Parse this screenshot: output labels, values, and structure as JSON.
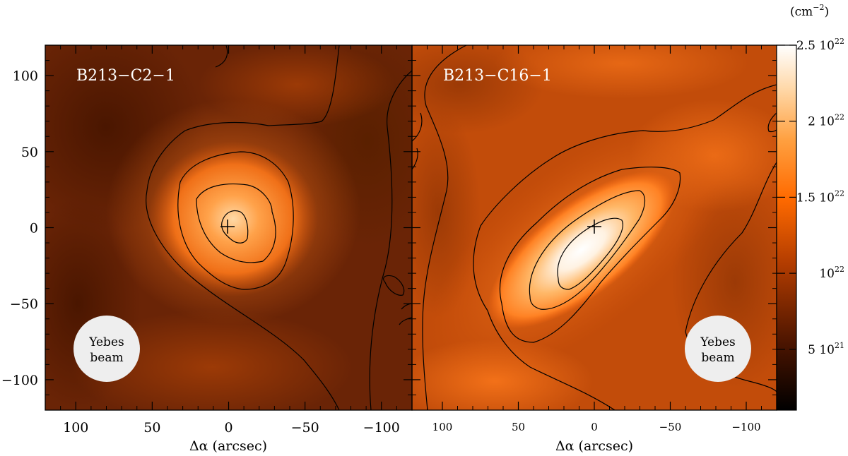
{
  "chart_data": {
    "type": "heatmap",
    "colorbar": {
      "unit": "(cm",
      "unit_exp": "−2",
      "unit_close": ")",
      "colormap": [
        "#000000",
        "#5a1a00",
        "#b03a00",
        "#ff6a00",
        "#ffa040",
        "#ffe0b0",
        "#ffffff"
      ],
      "range": [
        1e+21,
        2.5e+22
      ],
      "ticks": [
        {
          "value": 2.5e+22,
          "mant": "2.5 10",
          "exp": "22"
        },
        {
          "value": 2e+22,
          "mant": "2 10",
          "exp": "22"
        },
        {
          "value": 1.5e+22,
          "mant": "1.5 10",
          "exp": "22"
        },
        {
          "value": 1e+22,
          "mant": "10",
          "exp": "22"
        },
        {
          "value": 5e+21,
          "mant": "5 10",
          "exp": "21"
        }
      ]
    },
    "panels": [
      {
        "title": "B213−C2−1",
        "xlabel": "Δα (arcsec)",
        "xlim": [
          120,
          -120
        ],
        "ylim": [
          -120,
          120
        ],
        "xticks": [
          {
            "v": 100,
            "t": "100"
          },
          {
            "v": 50,
            "t": "50"
          },
          {
            "v": 0,
            "t": "0"
          },
          {
            "v": -50,
            "t": "−50"
          },
          {
            "v": -100,
            "t": "−100"
          }
        ],
        "yticks": [
          {
            "v": 100,
            "t": "100"
          },
          {
            "v": 50,
            "t": "50"
          },
          {
            "v": 0,
            "t": "0"
          },
          {
            "v": -50,
            "t": "−50"
          },
          {
            "v": -100,
            "t": "−100"
          }
        ],
        "peak": [
          0,
          0
        ],
        "beam_label": [
          "Yebes",
          "beam"
        ],
        "beam_center": [
          80,
          -80
        ]
      },
      {
        "title": "B213−C16−1",
        "xlabel": "Δα (arcsec)",
        "xlim": [
          120,
          -120
        ],
        "ylim": [
          -120,
          120
        ],
        "xticks": [
          {
            "v": 100,
            "t": "100"
          },
          {
            "v": 50,
            "t": "50"
          },
          {
            "v": 0,
            "t": "0"
          },
          {
            "v": -50,
            "t": "−50"
          },
          {
            "v": -100,
            "t": "−100"
          }
        ],
        "yticks": [],
        "peak": [
          0,
          0
        ],
        "beam_label": [
          "Yebes",
          "beam"
        ],
        "beam_center": [
          -80,
          -80
        ]
      }
    ]
  }
}
